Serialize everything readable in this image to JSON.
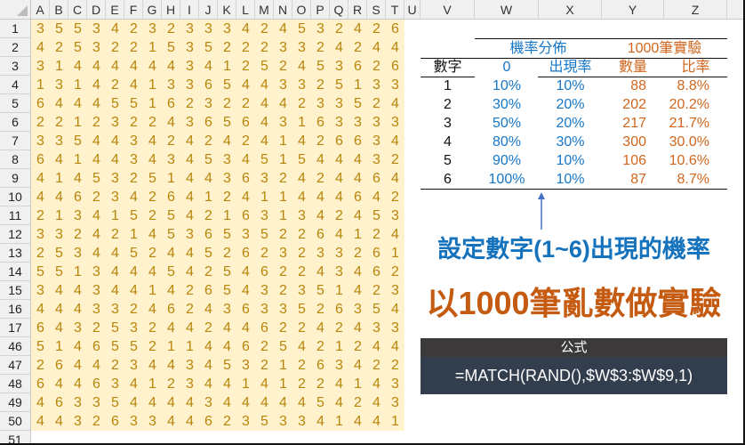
{
  "columns": [
    "A",
    "B",
    "C",
    "D",
    "E",
    "F",
    "G",
    "H",
    "I",
    "J",
    "K",
    "L",
    "M",
    "N",
    "O",
    "P",
    "Q",
    "R",
    "S",
    "T",
    "U",
    "V",
    "W",
    "X",
    "Y",
    "Z"
  ],
  "row_numbers": [
    1,
    2,
    3,
    4,
    5,
    6,
    7,
    8,
    9,
    10,
    11,
    12,
    13,
    14,
    15,
    16,
    17,
    46,
    47,
    48,
    49,
    50,
    51
  ],
  "grid": [
    "35534232333424532426",
    "42532215352223324244",
    "31444444341252453626",
    "13142413365443325133",
    "64445516232244233524",
    "22123224365643163333",
    "33544342424241426634",
    "64144343453451544432",
    "41453251443632424464",
    "44623426412411444642",
    "21341525421631342453",
    "33242145365352264124",
    "25344524452623233261",
    "55134445425462243462",
    "34434414265432351423",
    "44433246243633526354",
    "64325324424462242433",
    "51465521144625421244",
    "26442344345321263422",
    "64463412344141224143",
    "46335444434444454243",
    "44326334462353341441",
    ""
  ],
  "table": {
    "group_prob": "機率分佈",
    "group_exp": "1000筆實驗",
    "headers": [
      "數字",
      "0",
      "出現率",
      "數量",
      "比率"
    ],
    "rows": [
      [
        "1",
        "10%",
        "10%",
        "88",
        "8.8%"
      ],
      [
        "2",
        "30%",
        "20%",
        "202",
        "20.2%"
      ],
      [
        "3",
        "50%",
        "20%",
        "217",
        "21.7%"
      ],
      [
        "4",
        "80%",
        "30%",
        "300",
        "30.0%"
      ],
      [
        "5",
        "90%",
        "10%",
        "106",
        "10.6%"
      ],
      [
        "6",
        "100%",
        "10%",
        "87",
        "8.7%"
      ]
    ]
  },
  "annotation_prob": "設定數字(1~6)出現的機率",
  "annotation_exp": "以1000筆亂數做實驗",
  "formula": {
    "label": "公式",
    "text": "=MATCH(RAND(),$W$3:$W$9,1)"
  },
  "colors": {
    "cell_fill": "#fff2cc",
    "digit": "#b8860b",
    "blue": "#1677c8",
    "orange": "#d0661e"
  }
}
